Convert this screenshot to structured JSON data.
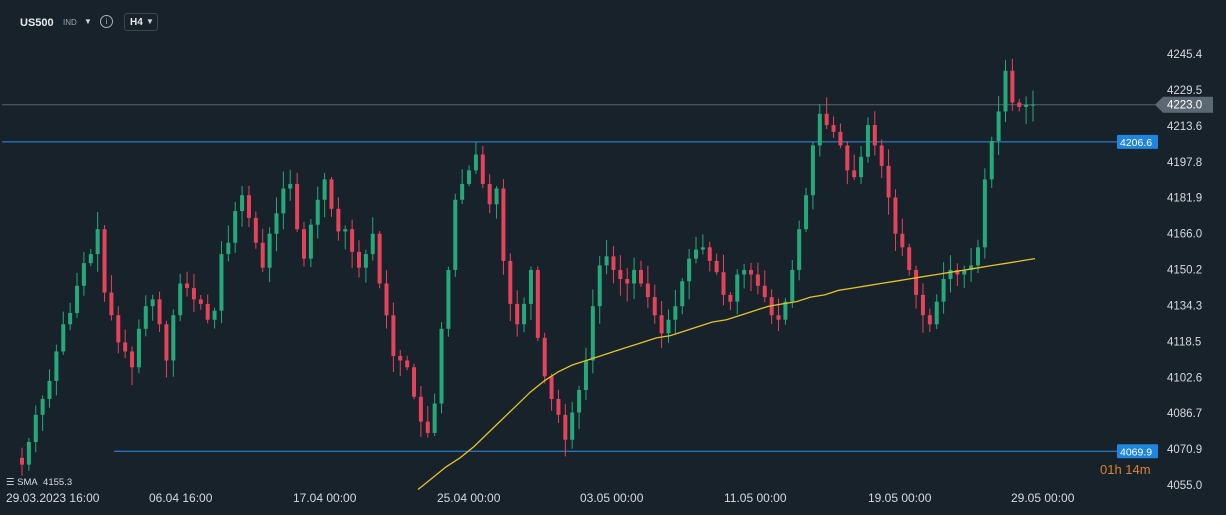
{
  "toolbar": {
    "symbol": "US500",
    "instrument_type": "IND",
    "timeframe": "H4",
    "dropdown_icon": "caret-down-icon",
    "info_icon": "info-icon"
  },
  "chart_data": {
    "type": "candlestick",
    "y_ticks": [
      "4245.4",
      "4229.5",
      "4213.6",
      "4197.8",
      "4181.9",
      "4166.0",
      "4150.2",
      "4134.3",
      "4118.5",
      "4102.6",
      "4086.7",
      "4070.9",
      "4055.0"
    ],
    "y_tick_values": [
      4245.4,
      4229.5,
      4213.6,
      4197.8,
      4181.9,
      4166.0,
      4150.2,
      4134.3,
      4118.5,
      4102.6,
      4086.7,
      4070.9,
      4055.0
    ],
    "ylim": [
      4055.0,
      4245.4
    ],
    "x_ticks": [
      "29.03.2023  16:00",
      "06.04  16:00",
      "17.04  00:00",
      "25.04  00:00",
      "03.05  00:00",
      "11.05  00:00",
      "19.05  00:00",
      "29.05  00:00"
    ],
    "current_price": "4223.0",
    "horizontal_lines": [
      {
        "value": 4206.6,
        "label": "4206.6"
      },
      {
        "value": 4069.9,
        "label": "4069.9"
      }
    ],
    "indicator": {
      "name": "SMA",
      "value": "4155.3"
    },
    "countdown": "01h 14m",
    "colors": {
      "up": "#26a97a",
      "down": "#e5425c",
      "sma": "#e2c22a",
      "hline": "#2f8fe0",
      "badge": "#1f86e0",
      "price_line": "#56636e",
      "background": "#18222b"
    },
    "close_path": [
      4064,
      4074,
      4086,
      4093,
      4101,
      4114,
      4126,
      4131,
      4143,
      4153,
      4157,
      4168,
      4140,
      4130,
      4118,
      4114,
      4107,
      4124,
      4134,
      4137,
      4126,
      4110,
      4130,
      4144,
      4142,
      4137,
      4135,
      4128,
      4132,
      4157,
      4162,
      4176,
      4183,
      4173,
      4162,
      4151,
      4166,
      4175,
      4186,
      4188,
      4168,
      4155,
      4170,
      4181,
      4190,
      4177,
      4167,
      4168,
      4158,
      4151,
      4157,
      4166,
      4144,
      4130,
      4112,
      4110,
      4107,
      4094,
      4083,
      4078,
      4091,
      4124,
      4150,
      4181,
      4188,
      4194,
      4201,
      4188,
      4179,
      4186,
      4154,
      4135,
      4126,
      4135,
      4150,
      4120,
      4103,
      4093,
      4086,
      4075,
      4087,
      4097,
      4110,
      4134,
      4152,
      4156,
      4150,
      4146,
      4144,
      4150,
      4144,
      4138,
      4130,
      4122,
      4128,
      4134,
      4145,
      4155,
      4159,
      4160,
      4154,
      4149,
      4139,
      4136,
      4148,
      4150,
      4148,
      4143,
      4138,
      4130,
      4128,
      4136,
      4150,
      4168,
      4183,
      4205,
      4219,
      4214,
      4211,
      4205,
      4194,
      4191,
      4200,
      4214,
      4205,
      4196,
      4182,
      4166,
      4160,
      4150,
      4139,
      4130,
      4126,
      4136,
      4146,
      4150,
      4148,
      4150,
      4152,
      4160,
      4190,
      4207,
      4220,
      4238,
      4224,
      4222,
      4223,
      4223
    ],
    "sma_path": [
      4053,
      4058,
      4063,
      4067,
      4072,
      4078,
      4084,
      4090,
      4096,
      4101,
      4105,
      4108,
      4110,
      4112,
      4114,
      4116,
      4118,
      4120,
      4121,
      4123,
      4125,
      4127,
      4128,
      4130,
      4132,
      4134,
      4135,
      4136,
      4138,
      4139,
      4141,
      4142,
      4143,
      4144,
      4145,
      4146,
      4147,
      4148,
      4149,
      4150,
      4151,
      4152,
      4153,
      4154,
      4155
    ]
  }
}
